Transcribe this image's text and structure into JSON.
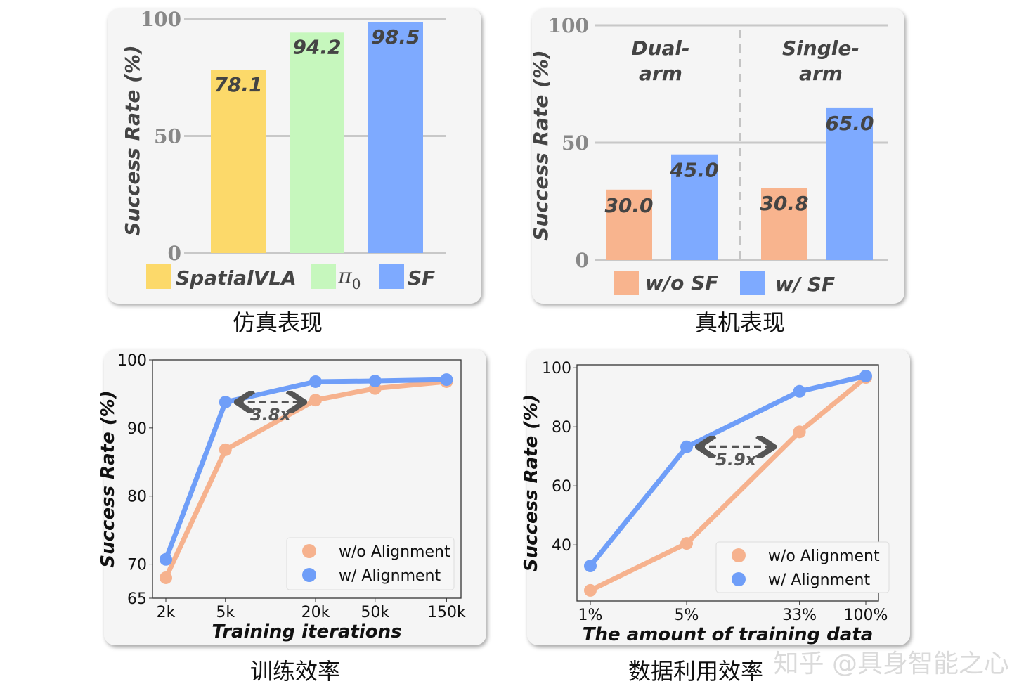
{
  "colors": {
    "spatialvla": "#fcd96a",
    "pi0": "#c6f7bd",
    "sf": "#7eaaff",
    "wo_sf": "#f8b48e",
    "line_wo": "#f6b28e",
    "line_w": "#6f9ef8",
    "panel_bg": "#f5f5f5",
    "grid": "#c8c8c8",
    "label_dark": "#444444"
  },
  "watermark": "知乎 @具身智能之心",
  "chart_data": [
    {
      "type": "bar",
      "caption": "仿真表现",
      "ylabel": "Success Rate (%)",
      "ylim": [
        0,
        100
      ],
      "yticks": [
        "0",
        "50",
        "100"
      ],
      "grid": true,
      "categories": [
        "SpatialVLA",
        "π0",
        "SF"
      ],
      "values": [
        78.1,
        94.2,
        98.5
      ],
      "value_labels": [
        "78.1",
        "94.2",
        "98.5"
      ],
      "legend": {
        "position": "bottom",
        "entries": [
          "SpatialVLA",
          "π",
          "0",
          "SF"
        ]
      }
    },
    {
      "type": "bar",
      "caption": "真机表现",
      "ylabel": "Success Rate (%)",
      "ylim": [
        0,
        100
      ],
      "yticks": [
        "0",
        "50",
        "100"
      ],
      "grid": true,
      "groups": [
        {
          "label_line1": "Dual-",
          "label_line2": "arm"
        },
        {
          "label_line1": "Single-",
          "label_line2": "arm"
        }
      ],
      "series": [
        {
          "name": "w/o SF",
          "values": [
            30.0,
            30.8
          ],
          "value_labels": [
            "30.0",
            "30.8"
          ]
        },
        {
          "name": "w/ SF",
          "values": [
            45.0,
            65.0
          ],
          "value_labels": [
            "45.0",
            "65.0"
          ]
        }
      ],
      "legend": {
        "position": "bottom"
      }
    },
    {
      "type": "line",
      "caption": "训练效率",
      "xlabel": "Training iterations",
      "ylabel": "Success Rate (%)",
      "xscale": "log",
      "x": [
        2000,
        5000,
        20000,
        50000,
        150000
      ],
      "xticklabels": [
        "2k",
        "5k",
        "20k",
        "50k",
        "150k"
      ],
      "ylim": [
        65,
        100
      ],
      "yticks": [
        65,
        70,
        80,
        90,
        100
      ],
      "yticklabels": [
        "65",
        "70",
        "80",
        "90",
        "100"
      ],
      "series": [
        {
          "name": "w/o Alignment",
          "values": [
            68.0,
            86.8,
            94.1,
            95.8,
            96.8
          ]
        },
        {
          "name": "w/ Alignment",
          "values": [
            70.7,
            93.8,
            96.8,
            96.9,
            97.1
          ]
        }
      ],
      "annotation": {
        "text": "3.8x",
        "from_x": 5000,
        "to_x": 20000,
        "y": 93.8
      },
      "legend": {
        "position": "lower-right"
      }
    },
    {
      "type": "line",
      "caption": "数据利用效率",
      "xlabel": "The amount of training data",
      "ylabel": "Success Rate (%)",
      "xscale": "log",
      "x": [
        1,
        5,
        33,
        100
      ],
      "xticklabels": [
        "1%",
        "5%",
        "33%",
        "100%"
      ],
      "ylim": [
        21,
        101
      ],
      "yticks": [
        40,
        60,
        80,
        100
      ],
      "yticklabels": [
        "40",
        "60",
        "80",
        "100"
      ],
      "series": [
        {
          "name": "w/o Alignment",
          "values": [
            24.6,
            40.5,
            78.3,
            96.7
          ]
        },
        {
          "name": "w/ Alignment",
          "values": [
            32.9,
            73.2,
            92.0,
            97.2
          ]
        }
      ],
      "annotation": {
        "text": "5.9x",
        "from_x": 5,
        "to_x": 26,
        "y": 73.2
      },
      "legend": {
        "position": "lower-right"
      }
    }
  ]
}
